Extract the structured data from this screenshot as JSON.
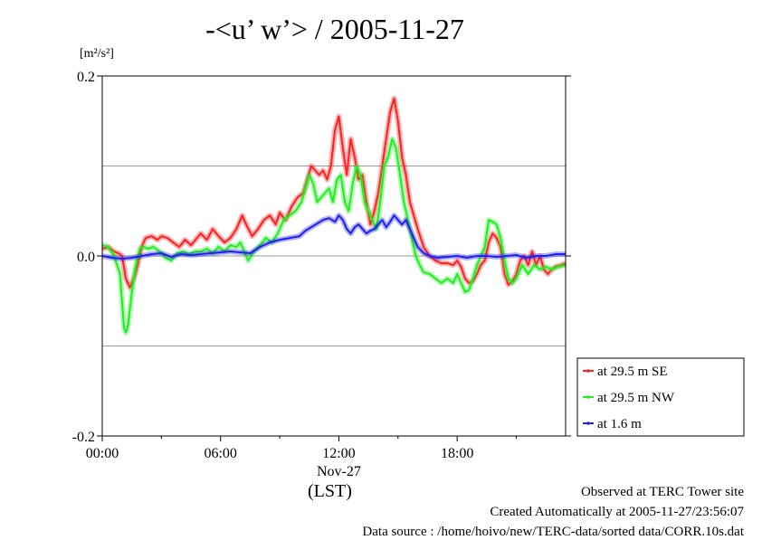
{
  "chart_data": {
    "type": "line",
    "title": "-<u’ w’> / 2005-11-27",
    "ylabel": "[m²/s²]",
    "xlabel": "(LST)",
    "date_label": "Nov-27",
    "xlim": [
      0,
      23.5
    ],
    "ylim": [
      -0.2,
      0.2
    ],
    "xticks": [
      {
        "label": "00:00",
        "value": 0
      },
      {
        "label": "06:00",
        "value": 6
      },
      {
        "label": "12:00",
        "value": 12
      },
      {
        "label": "18:00",
        "value": 18
      }
    ],
    "yticks": [
      {
        "label": "0.2",
        "value": 0.2
      },
      {
        "label": "0.0",
        "value": 0.0
      },
      {
        "label": "-0.2",
        "value": -0.2
      }
    ],
    "grid": true,
    "legend_position": "right",
    "series": [
      {
        "name": "at 29.5 m SE",
        "color": "#ff2020",
        "x": [
          0.0,
          0.3,
          0.6,
          0.9,
          1.0,
          1.2,
          1.4,
          1.6,
          1.8,
          2.0,
          2.2,
          2.5,
          2.8,
          3.0,
          3.3,
          3.6,
          3.9,
          4.2,
          4.5,
          4.8,
          5.0,
          5.3,
          5.6,
          5.9,
          6.2,
          6.5,
          6.8,
          7.1,
          7.3,
          7.6,
          7.9,
          8.2,
          8.5,
          8.8,
          9.0,
          9.3,
          9.6,
          9.9,
          10.2,
          10.4,
          10.6,
          10.8,
          11.0,
          11.2,
          11.4,
          11.6,
          11.8,
          12.0,
          12.2,
          12.4,
          12.6,
          12.8,
          13.0,
          13.2,
          13.4,
          13.6,
          13.8,
          14.0,
          14.2,
          14.4,
          14.6,
          14.8,
          15.0,
          15.2,
          15.4,
          15.6,
          15.8,
          16.0,
          16.3,
          16.6,
          16.9,
          17.2,
          17.5,
          17.8,
          18.0,
          18.2,
          18.4,
          18.6,
          18.8,
          19.0,
          19.2,
          19.4,
          19.6,
          19.8,
          20.0,
          20.2,
          20.4,
          20.6,
          20.8,
          21.0,
          21.2,
          21.4,
          21.6,
          21.8,
          22.0,
          22.2,
          22.4,
          22.6,
          22.8,
          23.0,
          23.3,
          23.5
        ],
        "values": [
          0.008,
          0.01,
          0.005,
          0.002,
          0.0,
          -0.025,
          -0.035,
          -0.025,
          -0.01,
          0.01,
          0.02,
          0.022,
          0.018,
          0.022,
          0.02,
          0.015,
          0.01,
          0.018,
          0.012,
          0.02,
          0.025,
          0.018,
          0.03,
          0.022,
          0.015,
          0.02,
          0.03,
          0.045,
          0.035,
          0.022,
          0.03,
          0.04,
          0.045,
          0.035,
          0.048,
          0.04,
          0.055,
          0.065,
          0.07,
          0.085,
          0.1,
          0.095,
          0.09,
          0.095,
          0.085,
          0.1,
          0.14,
          0.155,
          0.12,
          0.09,
          0.13,
          0.11,
          0.085,
          0.09,
          0.06,
          0.035,
          0.05,
          0.07,
          0.1,
          0.13,
          0.16,
          0.175,
          0.15,
          0.11,
          0.09,
          0.06,
          0.045,
          0.03,
          0.01,
          0.0,
          -0.005,
          -0.008,
          -0.008,
          -0.01,
          -0.005,
          -0.012,
          -0.025,
          -0.03,
          -0.028,
          -0.02,
          -0.01,
          -0.005,
          0.015,
          0.025,
          0.02,
          0.01,
          -0.02,
          -0.032,
          -0.028,
          -0.02,
          -0.005,
          0.0,
          -0.01,
          0.005,
          -0.01,
          0.0,
          -0.015,
          -0.02,
          -0.015,
          -0.012,
          -0.01,
          -0.008
        ]
      },
      {
        "name": "at 29.5 m NW",
        "color": "#20ee20",
        "x": [
          0.0,
          0.3,
          0.6,
          0.9,
          1.0,
          1.1,
          1.2,
          1.3,
          1.4,
          1.5,
          1.7,
          1.9,
          2.1,
          2.3,
          2.6,
          2.9,
          3.2,
          3.5,
          3.8,
          4.1,
          4.4,
          4.7,
          5.0,
          5.3,
          5.6,
          5.9,
          6.2,
          6.5,
          6.8,
          7.0,
          7.2,
          7.4,
          7.7,
          8.0,
          8.3,
          8.6,
          8.9,
          9.2,
          9.5,
          9.8,
          10.1,
          10.3,
          10.5,
          10.7,
          10.9,
          11.1,
          11.3,
          11.5,
          11.7,
          11.9,
          12.1,
          12.3,
          12.5,
          12.7,
          12.9,
          13.1,
          13.3,
          13.5,
          13.7,
          13.9,
          14.1,
          14.3,
          14.5,
          14.7,
          14.9,
          15.1,
          15.3,
          15.5,
          15.7,
          15.9,
          16.1,
          16.3,
          16.6,
          16.9,
          17.2,
          17.5,
          17.8,
          18.0,
          18.2,
          18.4,
          18.6,
          18.8,
          19.0,
          19.2,
          19.4,
          19.6,
          19.8,
          20.0,
          20.2,
          20.4,
          20.6,
          20.8,
          21.0,
          21.3,
          21.6,
          21.9,
          22.2,
          22.5,
          22.8,
          23.1,
          23.5
        ],
        "values": [
          0.012,
          0.01,
          0.0,
          -0.02,
          -0.05,
          -0.08,
          -0.085,
          -0.078,
          -0.06,
          -0.04,
          -0.01,
          0.008,
          0.01,
          0.008,
          0.01,
          0.005,
          -0.002,
          -0.005,
          0.003,
          0.005,
          0.002,
          0.005,
          0.005,
          0.008,
          0.003,
          0.01,
          0.005,
          0.012,
          0.01,
          0.015,
          0.005,
          -0.005,
          0.005,
          0.012,
          0.02,
          0.015,
          0.025,
          0.04,
          0.045,
          0.05,
          0.06,
          0.075,
          0.09,
          0.08,
          0.06,
          0.065,
          0.07,
          0.075,
          0.06,
          0.085,
          0.09,
          0.06,
          0.05,
          0.08,
          0.1,
          0.09,
          0.06,
          0.05,
          0.04,
          0.03,
          0.06,
          0.1,
          0.11,
          0.13,
          0.12,
          0.09,
          0.06,
          0.04,
          0.02,
          0.0,
          -0.01,
          -0.018,
          -0.02,
          -0.025,
          -0.03,
          -0.025,
          -0.03,
          -0.02,
          -0.03,
          -0.04,
          -0.038,
          -0.025,
          -0.01,
          0.0,
          0.01,
          0.04,
          0.038,
          0.035,
          0.02,
          -0.005,
          -0.025,
          -0.03,
          -0.025,
          -0.01,
          -0.02,
          -0.01,
          -0.015,
          -0.012,
          -0.015,
          -0.012,
          -0.01
        ]
      },
      {
        "name": "at 1.6 m",
        "color": "#2020ee",
        "x": [
          0.0,
          0.5,
          1.0,
          1.5,
          2.0,
          2.5,
          3.0,
          3.5,
          4.0,
          4.5,
          5.0,
          5.5,
          6.0,
          6.5,
          7.0,
          7.5,
          8.0,
          8.5,
          9.0,
          9.5,
          10.0,
          10.3,
          10.6,
          10.9,
          11.2,
          11.5,
          11.8,
          12.0,
          12.2,
          12.4,
          12.6,
          12.8,
          13.0,
          13.2,
          13.4,
          13.6,
          13.8,
          14.0,
          14.2,
          14.4,
          14.6,
          14.8,
          15.0,
          15.2,
          15.4,
          15.6,
          15.8,
          16.0,
          16.3,
          16.6,
          17.0,
          17.5,
          18.0,
          18.5,
          19.0,
          19.5,
          20.0,
          20.5,
          21.0,
          21.5,
          22.0,
          22.5,
          23.0,
          23.5
        ],
        "values": [
          0.0,
          -0.002,
          -0.003,
          -0.002,
          0.0,
          0.002,
          0.003,
          -0.001,
          0.002,
          0.001,
          0.002,
          0.003,
          0.004,
          0.005,
          0.004,
          0.003,
          0.01,
          0.015,
          0.018,
          0.02,
          0.022,
          0.028,
          0.032,
          0.036,
          0.04,
          0.042,
          0.038,
          0.045,
          0.04,
          0.03,
          0.025,
          0.032,
          0.035,
          0.03,
          0.025,
          0.028,
          0.03,
          0.035,
          0.04,
          0.032,
          0.038,
          0.045,
          0.04,
          0.035,
          0.04,
          0.03,
          0.02,
          0.01,
          0.003,
          0.0,
          -0.002,
          -0.001,
          0.0,
          -0.002,
          0.0,
          0.0,
          -0.001,
          0.0,
          0.001,
          -0.002,
          0.0,
          0.0,
          0.002,
          0.002
        ]
      }
    ]
  },
  "footer": {
    "line1": "Observed at TERC Tower site",
    "line2": "Created Automatically at 2005-11-27/23:56:07",
    "line3": "Data source : /home/hoivo/new/TERC-data/sorted  data/CORR.10s.dat"
  }
}
